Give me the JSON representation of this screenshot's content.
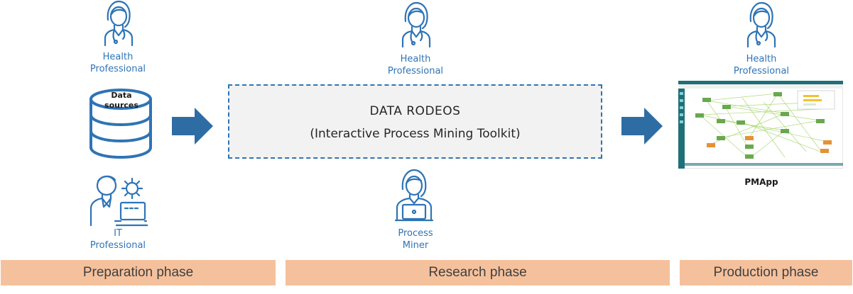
{
  "left": {
    "top_role": [
      "Health",
      "Professional"
    ],
    "data_sources_label": [
      "Data",
      "sources"
    ],
    "bottom_role": [
      "IT",
      "Professional"
    ]
  },
  "center": {
    "top_role": [
      "Health",
      "Professional"
    ],
    "title": "DATA RODEOS",
    "subtitle": "(Interactive Process Mining Toolkit)",
    "bottom_role": [
      "Process",
      "Miner"
    ]
  },
  "right": {
    "top_role": [
      "Health",
      "Professional"
    ],
    "app_label": "PMApp"
  },
  "phases": [
    "Preparation phase",
    "Research phase",
    "Production phase"
  ],
  "colors": {
    "accent": "#2e74b5",
    "phase_bar": "#f5c19c",
    "box_fill": "#f2f2f2",
    "arrow": "#2e6da4"
  }
}
